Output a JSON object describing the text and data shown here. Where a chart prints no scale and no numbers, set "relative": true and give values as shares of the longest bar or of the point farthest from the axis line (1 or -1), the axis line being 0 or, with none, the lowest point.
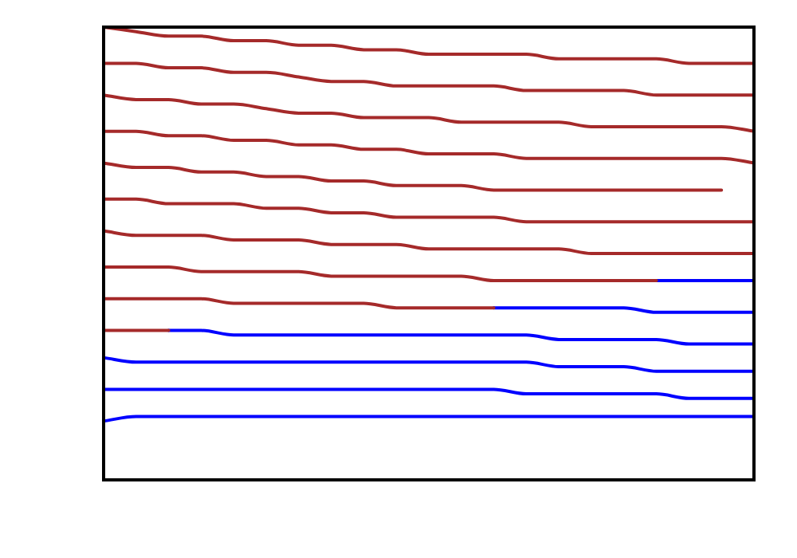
{
  "chart_data": {
    "type": "line",
    "relative": true,
    "legend": false,
    "marker": "none",
    "line_style": "solid",
    "categories": [
      null,
      null,
      null,
      null,
      null,
      null,
      null,
      null,
      null,
      null,
      null,
      null,
      null,
      null,
      null,
      null,
      null,
      null,
      null,
      null,
      null
    ],
    "series": [
      {
        "color": "#a52a2a",
        "values": [
          1,
          0.99,
          0.98,
          0.98,
          0.97,
          0.97,
          0.96,
          0.96,
          0.95,
          0.95,
          0.94,
          0.94,
          0.94,
          0.94,
          0.93,
          0.93,
          0.93,
          0.93,
          0.92,
          0.92,
          0.92
        ]
      },
      {
        "color": "#a52a2a",
        "values": [
          0.92,
          0.92,
          0.91,
          0.91,
          0.9,
          0.9,
          0.89,
          0.88,
          0.88,
          0.87,
          0.87,
          0.87,
          0.87,
          0.86,
          0.86,
          0.86,
          0.86,
          0.85,
          0.85,
          0.85,
          0.85
        ]
      },
      {
        "color": "#a52a2a",
        "values": [
          0.85,
          0.84,
          0.84,
          0.83,
          0.83,
          0.82,
          0.81,
          0.81,
          0.8,
          0.8,
          0.8,
          0.79,
          0.79,
          0.79,
          0.79,
          0.78,
          0.78,
          0.78,
          0.78,
          0.78,
          0.77
        ]
      },
      {
        "color": "#a52a2a",
        "values": [
          0.77,
          0.77,
          0.76,
          0.76,
          0.75,
          0.75,
          0.74,
          0.74,
          0.73,
          0.73,
          0.72,
          0.72,
          0.72,
          0.71,
          0.71,
          0.71,
          0.71,
          0.71,
          0.71,
          0.71,
          0.7
        ]
      },
      {
        "color": "#a52a2a",
        "values": [
          0.7,
          0.69,
          0.69,
          0.68,
          0.68,
          0.67,
          0.67,
          0.66,
          0.66,
          0.65,
          0.65,
          0.65,
          0.64,
          0.64,
          0.64,
          0.64,
          0.64,
          0.64,
          0.64,
          0.64,
          null
        ]
      },
      {
        "color": "#a52a2a",
        "values": [
          0.62,
          0.62,
          0.61,
          0.61,
          0.61,
          0.6,
          0.6,
          0.59,
          0.59,
          0.58,
          0.58,
          0.58,
          0.58,
          0.57,
          0.57,
          0.57,
          0.57,
          0.57,
          0.57,
          0.57,
          0.57
        ]
      },
      {
        "color": "#a52a2a",
        "values": [
          0.55,
          0.54,
          0.54,
          0.54,
          0.53,
          0.53,
          0.53,
          0.52,
          0.52,
          0.52,
          0.51,
          0.51,
          0.51,
          0.51,
          0.51,
          0.5,
          0.5,
          0.5,
          0.5,
          0.5,
          0.5
        ]
      },
      {
        "color": "#a52a2a",
        "values": [
          0.47,
          0.47,
          0.47,
          0.46,
          0.46,
          0.46,
          0.46,
          0.45,
          0.45,
          0.45,
          0.45,
          0.45,
          0.44,
          0.44,
          0.44,
          0.44,
          0.44,
          0.44,
          null,
          null,
          null
        ]
      },
      {
        "color": "#0000ff",
        "values": [
          null,
          null,
          null,
          null,
          null,
          null,
          null,
          null,
          null,
          null,
          null,
          null,
          null,
          null,
          null,
          null,
          null,
          0.44,
          0.44,
          0.44,
          0.44
        ]
      },
      {
        "color": "#a52a2a",
        "values": [
          0.4,
          0.4,
          0.4,
          0.4,
          0.39,
          0.39,
          0.39,
          0.39,
          0.39,
          0.38,
          0.38,
          0.38,
          0.38,
          null,
          null,
          null,
          null,
          null,
          null,
          null,
          null
        ]
      },
      {
        "color": "#0000ff",
        "values": [
          null,
          null,
          null,
          null,
          null,
          null,
          null,
          null,
          null,
          null,
          null,
          null,
          0.38,
          0.38,
          0.38,
          0.38,
          0.38,
          0.37,
          0.37,
          0.37,
          0.37
        ]
      },
      {
        "color": "#a52a2a",
        "values": [
          0.33,
          0.33,
          0.33,
          null,
          null,
          null,
          null,
          null,
          null,
          null,
          null,
          null,
          null,
          null,
          null,
          null,
          null,
          null,
          null,
          null,
          null
        ]
      },
      {
        "color": "#0000ff",
        "values": [
          null,
          null,
          0.33,
          0.33,
          0.32,
          0.32,
          0.32,
          0.32,
          0.32,
          0.32,
          0.32,
          0.32,
          0.32,
          0.32,
          0.31,
          0.31,
          0.31,
          0.31,
          0.3,
          0.3,
          0.3
        ]
      },
      {
        "color": "#0000ff",
        "values": [
          0.27,
          0.26,
          0.26,
          0.26,
          0.26,
          0.26,
          0.26,
          0.26,
          0.26,
          0.26,
          0.26,
          0.26,
          0.26,
          0.26,
          0.25,
          0.25,
          0.25,
          0.24,
          0.24,
          0.24,
          0.24
        ]
      },
      {
        "color": "#0000ff",
        "values": [
          0.2,
          0.2,
          0.2,
          0.2,
          0.2,
          0.2,
          0.2,
          0.2,
          0.2,
          0.2,
          0.2,
          0.2,
          0.2,
          0.19,
          0.19,
          0.19,
          0.19,
          0.19,
          0.18,
          0.18,
          0.18
        ]
      },
      {
        "color": "#0000ff",
        "values": [
          0.13,
          0.14,
          0.14,
          0.14,
          0.14,
          0.14,
          0.14,
          0.14,
          0.14,
          0.14,
          0.14,
          0.14,
          0.14,
          0.14,
          0.14,
          0.14,
          0.14,
          0.14,
          0.14,
          0.14,
          0.14
        ]
      }
    ]
  }
}
